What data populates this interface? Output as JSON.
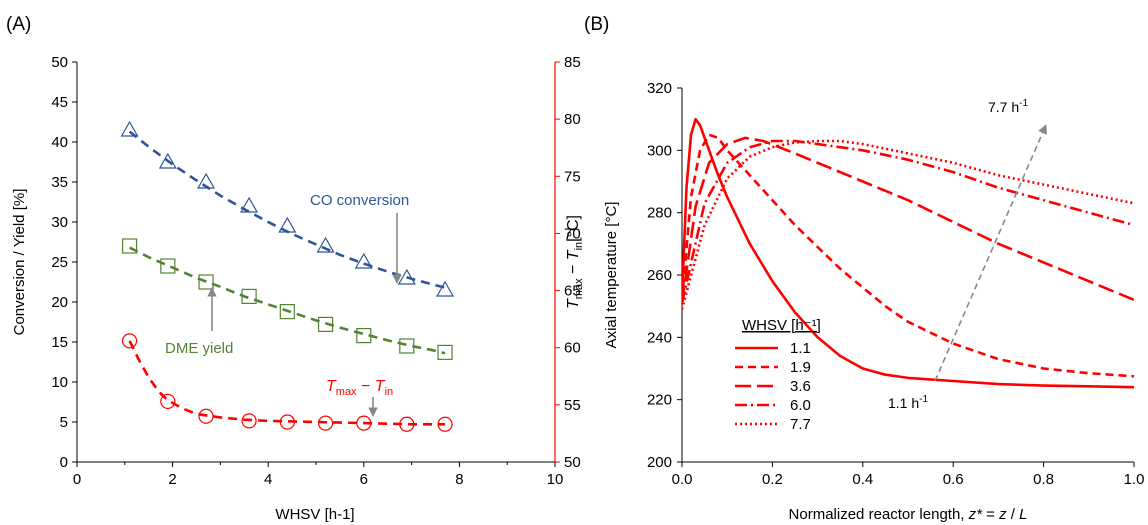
{
  "chart_data": [
    {
      "type": "scatter",
      "panel_label": "(A)",
      "xlabel": "WHSV [h-1]",
      "ylabel": "Conversion / Yield [%]",
      "y2label": "T_max − T_in [°C]",
      "xlim": [
        0,
        10
      ],
      "ylim": [
        0,
        50
      ],
      "y2lim": [
        50,
        85
      ],
      "x_ticks": [
        0,
        2,
        4,
        6,
        8,
        10
      ],
      "y_ticks": [
        0,
        5,
        10,
        15,
        20,
        25,
        30,
        35,
        40,
        45,
        50
      ],
      "y2_ticks": [
        50,
        55,
        60,
        65,
        70,
        75,
        80,
        85
      ],
      "grid": false,
      "colors": {
        "co": "#2f5597",
        "dme": "#548235",
        "dt": "#ff0000"
      },
      "series": [
        {
          "key": "co",
          "axis": "left",
          "marker": "triangle",
          "x": [
            1.1,
            1.9,
            2.7,
            3.6,
            4.4,
            5.2,
            6.0,
            6.9,
            7.7
          ],
          "y": [
            41.5,
            37.5,
            35.0,
            32.0,
            29.5,
            27.0,
            25.0,
            23.0,
            21.5
          ],
          "fit": [
            [
              1.1,
              41.3
            ],
            [
              1.5,
              39.4
            ],
            [
              2,
              37.2
            ],
            [
              2.5,
              35.2
            ],
            [
              3,
              33.3
            ],
            [
              3.5,
              31.6
            ],
            [
              4,
              30.0
            ],
            [
              4.5,
              28.5
            ],
            [
              5,
              27.2
            ],
            [
              5.5,
              25.9
            ],
            [
              6,
              24.8
            ],
            [
              6.5,
              23.8
            ],
            [
              7,
              22.9
            ],
            [
              7.5,
              22.1
            ],
            [
              7.7,
              21.8
            ]
          ]
        },
        {
          "key": "dme",
          "axis": "left",
          "marker": "square",
          "x": [
            1.1,
            1.9,
            2.7,
            3.6,
            4.4,
            5.2,
            6.0,
            6.9,
            7.7
          ],
          "y": [
            27.0,
            24.5,
            22.5,
            20.7,
            18.8,
            17.2,
            15.8,
            14.5,
            13.7
          ],
          "fit": [
            [
              1.1,
              26.8
            ],
            [
              1.5,
              25.6
            ],
            [
              2,
              24.3
            ],
            [
              2.5,
              23.0
            ],
            [
              3,
              21.9
            ],
            [
              3.5,
              20.7
            ],
            [
              4,
              19.7
            ],
            [
              4.5,
              18.7
            ],
            [
              5,
              17.7
            ],
            [
              5.5,
              16.8
            ],
            [
              6,
              16.0
            ],
            [
              6.5,
              15.2
            ],
            [
              7,
              14.5
            ],
            [
              7.5,
              13.9
            ],
            [
              7.7,
              13.6
            ]
          ]
        },
        {
          "key": "dt",
          "axis": "right",
          "marker": "circle",
          "x": [
            1.1,
            1.9,
            2.7,
            3.6,
            4.4,
            5.2,
            6.0,
            6.9,
            7.7
          ],
          "y": [
            60.6,
            55.3,
            54.0,
            53.6,
            53.5,
            53.4,
            53.4,
            53.3,
            53.3
          ],
          "fit": [
            [
              1.1,
              60.6
            ],
            [
              1.3,
              58.9
            ],
            [
              1.5,
              57.4
            ],
            [
              1.7,
              56.2
            ],
            [
              1.9,
              55.4
            ],
            [
              2.2,
              54.7
            ],
            [
              2.5,
              54.2
            ],
            [
              3,
              53.9
            ],
            [
              3.5,
              53.7
            ],
            [
              4,
              53.6
            ],
            [
              5,
              53.5
            ],
            [
              6,
              53.4
            ],
            [
              7,
              53.3
            ],
            [
              7.7,
              53.3
            ]
          ]
        }
      ],
      "annotations": [
        {
          "key": "co",
          "text": "CO conversion"
        },
        {
          "key": "dme",
          "text": "DME yield"
        },
        {
          "key": "dt",
          "text_main": "T",
          "sub1": "max",
          "dash": " − ",
          "text_main2": "T",
          "sub2": "in"
        }
      ]
    },
    {
      "type": "line",
      "panel_label": "(B)",
      "xlabel_main": "Normalized reactor length, ",
      "xlabel_var": "z*",
      "xlabel_rest": " = ",
      "xlabel_var2": "z",
      "xlabel_rest2": " / ",
      "xlabel_var3": "L",
      "ylabel": "Axial temperature [°C]",
      "xlim": [
        0,
        1
      ],
      "ylim": [
        200,
        320
      ],
      "x_ticks": [
        "0.0",
        "0.2",
        "0.4",
        "0.6",
        "0.8",
        "1.0"
      ],
      "y_ticks": [
        200,
        220,
        240,
        260,
        280,
        300,
        320
      ],
      "grid": false,
      "color": "#ff0000",
      "legend_title": "WHSV [h⁻¹]",
      "legend_position": "bottom-left",
      "series": [
        {
          "name": "1.1",
          "dash": "none",
          "points": [
            [
              0,
              253
            ],
            [
              0.01,
              288
            ],
            [
              0.02,
              305
            ],
            [
              0.03,
              310
            ],
            [
              0.04,
              308
            ],
            [
              0.06,
              300
            ],
            [
              0.08,
              292
            ],
            [
              0.1,
              285
            ],
            [
              0.15,
              270
            ],
            [
              0.2,
              258
            ],
            [
              0.25,
              248
            ],
            [
              0.3,
              240
            ],
            [
              0.35,
              234
            ],
            [
              0.4,
              230
            ],
            [
              0.45,
              228
            ],
            [
              0.5,
              227
            ],
            [
              0.6,
              226
            ],
            [
              0.7,
              225
            ],
            [
              0.8,
              224.5
            ],
            [
              0.9,
              224.3
            ],
            [
              1.0,
              224
            ]
          ]
        },
        {
          "name": "1.9",
          "dash": "8,5",
          "points": [
            [
              0,
              252
            ],
            [
              0.02,
              285
            ],
            [
              0.04,
              300
            ],
            [
              0.06,
              305
            ],
            [
              0.08,
              304
            ],
            [
              0.1,
              300
            ],
            [
              0.15,
              292
            ],
            [
              0.2,
              284
            ],
            [
              0.25,
              276
            ],
            [
              0.3,
              269
            ],
            [
              0.35,
              262
            ],
            [
              0.4,
              256
            ],
            [
              0.45,
              250
            ],
            [
              0.5,
              245
            ],
            [
              0.6,
              238
            ],
            [
              0.7,
              233
            ],
            [
              0.8,
              230
            ],
            [
              0.9,
              228.5
            ],
            [
              1.0,
              227.5
            ]
          ]
        },
        {
          "name": "3.6",
          "dash": "16,6",
          "points": [
            [
              0,
              251
            ],
            [
              0.03,
              282
            ],
            [
              0.06,
              296
            ],
            [
              0.1,
              302
            ],
            [
              0.14,
              304
            ],
            [
              0.18,
              303
            ],
            [
              0.25,
              299
            ],
            [
              0.3,
              296
            ],
            [
              0.4,
              290
            ],
            [
              0.5,
              284
            ],
            [
              0.6,
              277
            ],
            [
              0.7,
              270
            ],
            [
              0.8,
              264
            ],
            [
              0.9,
              258
            ],
            [
              1.0,
              252
            ]
          ]
        },
        {
          "name": "6.0",
          "dash": "12,4,2,4",
          "points": [
            [
              0,
              251
            ],
            [
              0.05,
              283
            ],
            [
              0.1,
              296
            ],
            [
              0.15,
              301
            ],
            [
              0.2,
              303
            ],
            [
              0.25,
              303
            ],
            [
              0.3,
              302
            ],
            [
              0.4,
              300
            ],
            [
              0.5,
              297
            ],
            [
              0.6,
              293
            ],
            [
              0.7,
              288
            ],
            [
              0.8,
              284
            ],
            [
              0.9,
              280
            ],
            [
              1.0,
              276
            ]
          ]
        },
        {
          "name": "7.7",
          "dash": "2,3",
          "points": [
            [
              0,
              249
            ],
            [
              0.05,
              276
            ],
            [
              0.1,
              291
            ],
            [
              0.15,
              298
            ],
            [
              0.2,
              301
            ],
            [
              0.25,
              302.5
            ],
            [
              0.3,
              303
            ],
            [
              0.35,
              303
            ],
            [
              0.4,
              302
            ],
            [
              0.5,
              299
            ],
            [
              0.6,
              296
            ],
            [
              0.7,
              292
            ],
            [
              0.8,
              289
            ],
            [
              0.9,
              286
            ],
            [
              1.0,
              283
            ]
          ]
        }
      ],
      "arrow_labels": {
        "low": "1.1 h",
        "low_sup": "-1",
        "high": "7.7 h",
        "high_sup": "-1"
      }
    }
  ]
}
